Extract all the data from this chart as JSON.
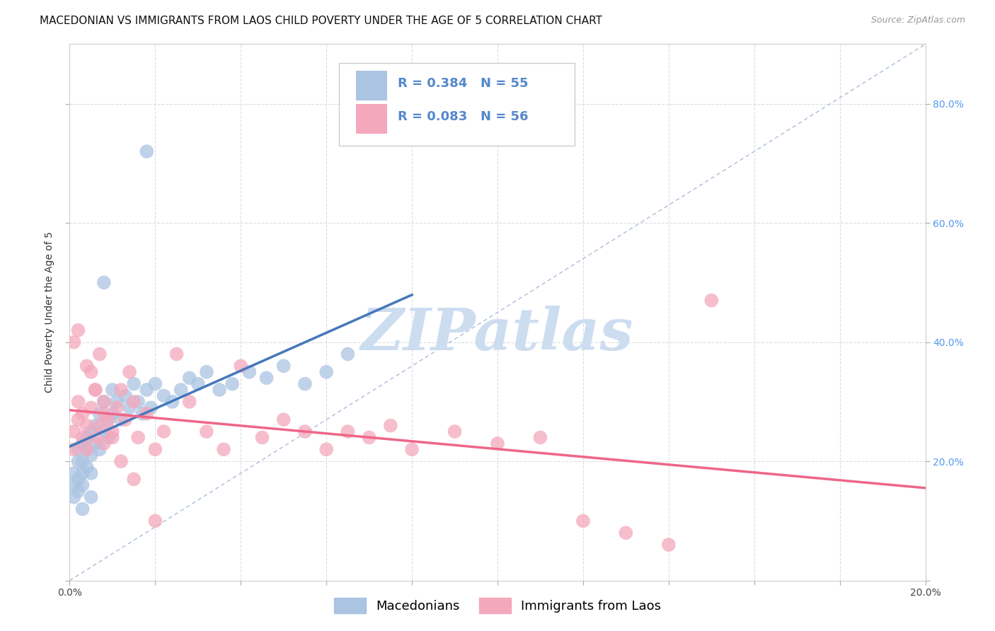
{
  "title": "MACEDONIAN VS IMMIGRANTS FROM LAOS CHILD POVERTY UNDER THE AGE OF 5 CORRELATION CHART",
  "source": "Source: ZipAtlas.com",
  "ylabel": "Child Poverty Under the Age of 5",
  "xlim": [
    0.0,
    0.2
  ],
  "ylim": [
    0.0,
    0.9
  ],
  "ytick_values": [
    0.0,
    0.2,
    0.4,
    0.6,
    0.8
  ],
  "xtick_values": [
    0.0,
    0.02,
    0.04,
    0.06,
    0.08,
    0.1,
    0.12,
    0.14,
    0.16,
    0.18,
    0.2
  ],
  "macedonians_color": "#aac4e2",
  "laos_color": "#f4a8bc",
  "macedonians_label": "Macedonians",
  "laos_label": "Immigrants from Laos",
  "r_macedonians": 0.384,
  "n_macedonians": 55,
  "r_laos": 0.083,
  "n_laos": 56,
  "legend_text_color": "#5588cc",
  "trend_mac_color": "#4477bb",
  "trend_laos_color": "#ee6688",
  "diagonal_color": "#aabbdd",
  "background_color": "#ffffff",
  "grid_color": "#dddddd",
  "right_tick_color": "#5599ee",
  "watermark_color": "#ccddf0",
  "title_fontsize": 11,
  "axis_label_fontsize": 10,
  "tick_fontsize": 10,
  "legend_fontsize": 13,
  "mac_x": [
    0.001,
    0.001,
    0.001,
    0.002,
    0.002,
    0.002,
    0.002,
    0.003,
    0.003,
    0.003,
    0.003,
    0.004,
    0.004,
    0.004,
    0.005,
    0.005,
    0.005,
    0.006,
    0.006,
    0.007,
    0.007,
    0.008,
    0.008,
    0.009,
    0.009,
    0.01,
    0.01,
    0.011,
    0.012,
    0.013,
    0.014,
    0.015,
    0.016,
    0.017,
    0.018,
    0.019,
    0.02,
    0.022,
    0.024,
    0.026,
    0.028,
    0.03,
    0.032,
    0.035,
    0.038,
    0.042,
    0.046,
    0.05,
    0.055,
    0.06,
    0.065,
    0.018,
    0.008,
    0.005,
    0.003
  ],
  "mac_y": [
    0.16,
    0.18,
    0.14,
    0.2,
    0.22,
    0.17,
    0.15,
    0.18,
    0.23,
    0.2,
    0.16,
    0.19,
    0.24,
    0.22,
    0.25,
    0.21,
    0.18,
    0.23,
    0.26,
    0.22,
    0.28,
    0.25,
    0.3,
    0.27,
    0.24,
    0.28,
    0.32,
    0.3,
    0.27,
    0.31,
    0.29,
    0.33,
    0.3,
    0.28,
    0.32,
    0.29,
    0.33,
    0.31,
    0.3,
    0.32,
    0.34,
    0.33,
    0.35,
    0.32,
    0.33,
    0.35,
    0.34,
    0.36,
    0.33,
    0.35,
    0.38,
    0.72,
    0.5,
    0.14,
    0.12
  ],
  "laos_x": [
    0.001,
    0.001,
    0.002,
    0.002,
    0.003,
    0.003,
    0.004,
    0.004,
    0.005,
    0.005,
    0.006,
    0.006,
    0.007,
    0.007,
    0.008,
    0.008,
    0.009,
    0.01,
    0.011,
    0.012,
    0.013,
    0.014,
    0.015,
    0.016,
    0.018,
    0.02,
    0.022,
    0.025,
    0.028,
    0.032,
    0.036,
    0.04,
    0.045,
    0.05,
    0.055,
    0.06,
    0.065,
    0.07,
    0.075,
    0.08,
    0.09,
    0.1,
    0.11,
    0.12,
    0.13,
    0.14,
    0.15,
    0.001,
    0.002,
    0.004,
    0.006,
    0.008,
    0.01,
    0.012,
    0.015,
    0.02
  ],
  "laos_y": [
    0.22,
    0.25,
    0.3,
    0.27,
    0.24,
    0.28,
    0.22,
    0.26,
    0.35,
    0.29,
    0.32,
    0.24,
    0.38,
    0.26,
    0.3,
    0.23,
    0.27,
    0.25,
    0.29,
    0.32,
    0.27,
    0.35,
    0.3,
    0.24,
    0.28,
    0.22,
    0.25,
    0.38,
    0.3,
    0.25,
    0.22,
    0.36,
    0.24,
    0.27,
    0.25,
    0.22,
    0.25,
    0.24,
    0.26,
    0.22,
    0.25,
    0.23,
    0.24,
    0.1,
    0.08,
    0.06,
    0.47,
    0.4,
    0.42,
    0.36,
    0.32,
    0.28,
    0.24,
    0.2,
    0.17,
    0.1
  ]
}
